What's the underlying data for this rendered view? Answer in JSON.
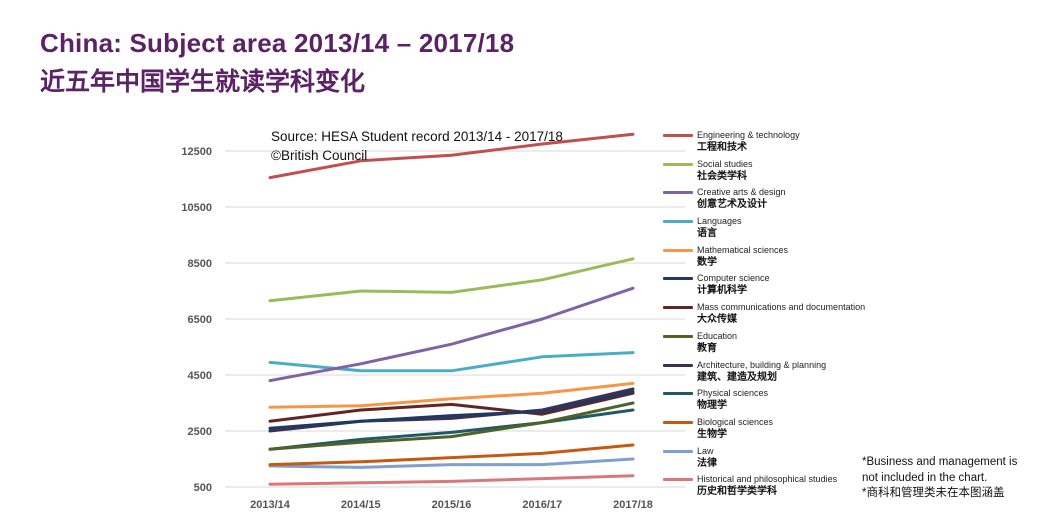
{
  "header": {
    "title_en": "China: Subject area 2013/14 – 2017/18",
    "title_zh": "近五年中国学生就读学科变化"
  },
  "source": {
    "line1": "Source: HESA Student record 2013/14 - 2017/18",
    "line2": "©British Council"
  },
  "footnote": {
    "line1": "*Business and management is",
    "line2": "not included in the chart.",
    "line3": "*商科和管理类未在本图涵盖"
  },
  "chart_data": {
    "type": "line",
    "title": "China: Subject area 2013/14 – 2017/18",
    "xlabel": "",
    "ylabel": "",
    "ylim": [
      500,
      13000
    ],
    "yticks": [
      500,
      2500,
      4500,
      6500,
      8500,
      10500,
      12500
    ],
    "grid": true,
    "legend_position": "right",
    "categories": [
      "2013/14",
      "2014/15",
      "2015/16",
      "2016/17",
      "2017/18"
    ],
    "series": [
      {
        "name": "Engineering & technology",
        "name_zh": "工程和技术",
        "color": "#c0504d",
        "values": [
          11550,
          12150,
          12350,
          12750,
          13100
        ]
      },
      {
        "name": "Social studies",
        "name_zh": "社会类学科",
        "color": "#9bbb59",
        "values": [
          7150,
          7500,
          7450,
          7900,
          8650
        ]
      },
      {
        "name": "Creative arts & design",
        "name_zh": "创意艺术及设计",
        "color": "#8064a2",
        "values": [
          4300,
          4900,
          5600,
          6500,
          7600
        ]
      },
      {
        "name": "Languages",
        "name_zh": "语言",
        "color": "#4bacc6",
        "values": [
          4950,
          4650,
          4650,
          5150,
          5300
        ]
      },
      {
        "name": "Mathematical sciences",
        "name_zh": "数学",
        "color": "#f79646",
        "values": [
          3350,
          3400,
          3650,
          3850,
          4200
        ]
      },
      {
        "name": "Computer science",
        "name_zh": "计算机科学",
        "color": "#1f3864",
        "values": [
          2600,
          2850,
          3050,
          3200,
          3900
        ]
      },
      {
        "name": "Mass communications and documentation",
        "name_zh": "大众传媒",
        "color": "#632523",
        "values": [
          2850,
          3250,
          3450,
          3100,
          3850
        ]
      },
      {
        "name": "Education",
        "name_zh": "教育",
        "color": "#4f6228",
        "values": [
          1850,
          2100,
          2300,
          2800,
          3500
        ]
      },
      {
        "name": "Architecture, building & planning",
        "name_zh": "建筑、建造及规划",
        "color": "#3f3151",
        "values": [
          2500,
          2850,
          2950,
          3250,
          4000
        ]
      },
      {
        "name": "Physical sciences",
        "name_zh": "物理学",
        "color": "#215967",
        "values": [
          1850,
          2200,
          2450,
          2800,
          3250
        ]
      },
      {
        "name": "Biological sciences",
        "name_zh": "生物学",
        "color": "#c65911",
        "values": [
          1300,
          1400,
          1550,
          1700,
          2000
        ]
      },
      {
        "name": "Law",
        "name_zh": "法律",
        "color": "#7f9fcf",
        "values": [
          1250,
          1200,
          1300,
          1300,
          1500
        ]
      },
      {
        "name": "Historical and philosophical studies",
        "name_zh": "历史和哲学类学科",
        "color": "#d9787a",
        "values": [
          600,
          650,
          700,
          800,
          900
        ]
      }
    ]
  }
}
